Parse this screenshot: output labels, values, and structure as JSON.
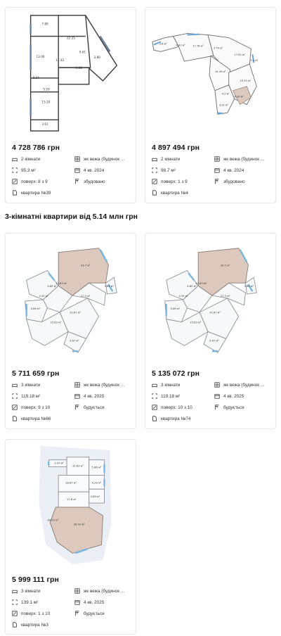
{
  "section_title": "3-кімнатні квартири від 5.14 млн грн",
  "cards": [
    {
      "price": "4 728 786 грн",
      "rooms": "2 кімнати",
      "building": "жк вежа (будинок ...",
      "area": "95.3 м²",
      "quarter": "4 кв. 2024",
      "floor": "поверх: 8 з 9",
      "status": "збудовано",
      "apartment": "квартира №39",
      "plan_labels": [
        "7.89",
        "22.25",
        "13.00",
        "9.41",
        "11.42",
        "5.34",
        "5.20",
        "15.20",
        "6.80",
        "3.80",
        "3.61"
      ]
    },
    {
      "price": "4 897 494 грн",
      "rooms": "2 кімнати",
      "building": "жк вежа (будинок ...",
      "area": "98.7 м²",
      "quarter": "4 кв. 2024",
      "floor": "поверх: 1 з 9",
      "status": "збудовано",
      "apartment": "квартира №4",
      "plan_labels": [
        "3.6 м²",
        "4.41 м²",
        "17.78 м²",
        "3.79 м²",
        "17.62 м²",
        "5.2 м²",
        "10.49 м²",
        "15.33 м²",
        "4.5 м²",
        "6.35 м²",
        "3.31 м²"
      ]
    },
    {
      "price": "5 711 659 грн",
      "rooms": "3 кімнати",
      "building": "жк вежа (будинок ...",
      "area": "119.18 м²",
      "quarter": "4 кв. 2025",
      "floor": "поверх: 9 з 10",
      "status": "будується",
      "apartment": "квартира №66",
      "plan_labels": [
        "24.7 м²",
        "4.85 м²",
        "13.83 м²",
        "17.3 м²",
        "3.65 м²",
        "4.35 м²",
        "5.69 м²",
        "10.67 м²",
        "15.63 м²",
        "3.67 м²"
      ]
    },
    {
      "price": "5 135 072 грн",
      "rooms": "3 кімнати",
      "building": "жк вежа (будинок ...",
      "area": "119.18 м²",
      "quarter": "4 кв. 2025",
      "floor": "поверх: 10 з 10",
      "status": "будується",
      "apartment": "квартира №74",
      "plan_labels": [
        "24.7 м²",
        "4.85 м²",
        "13.83 м²",
        "17.3 м²",
        "3.65 м²",
        "4.35 м²",
        "5.69 м²",
        "10.67 м²",
        "15.63 м²",
        "3.67 м²"
      ]
    },
    {
      "price": "5 999 111 грн",
      "rooms": "3 кімнати",
      "building": "жк вежа (будинок ...",
      "area": "139.1 м²",
      "quarter": "4 кв. 2025",
      "floor": "поверх: 1 з 10",
      "status": "будується",
      "apartment": "квартира №3",
      "plan_labels": [
        "3.47 м²",
        "15.63 м²",
        "5.86 м²",
        "18.87 м²",
        "4.29 м²",
        "17.8 м²",
        "4.69 м²",
        "28.53 м²",
        "38.53 м²"
      ]
    }
  ]
}
